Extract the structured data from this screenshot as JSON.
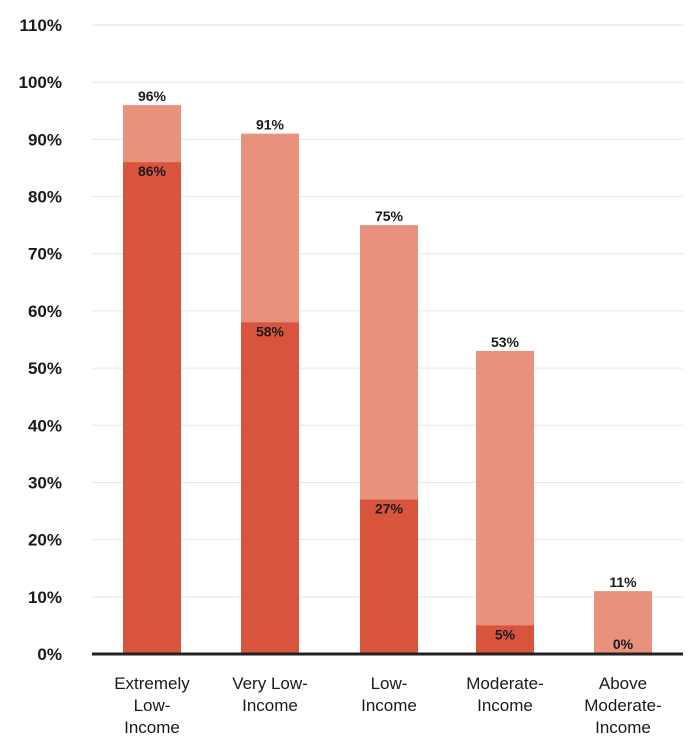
{
  "chart_data": {
    "type": "bar",
    "categories": [
      [
        "Extremely",
        "Low-",
        "Income"
      ],
      [
        "Very Low-",
        "Income"
      ],
      [
        "Low-",
        "Income"
      ],
      [
        "Moderate-",
        "Income"
      ],
      [
        "Above",
        "Moderate-",
        "Income"
      ]
    ],
    "series": [
      {
        "values": [
          96,
          91,
          75,
          53,
          11
        ],
        "labels": [
          "96%",
          "91%",
          "75%",
          "53%",
          "11%"
        ],
        "color": "#e8927e"
      },
      {
        "values": [
          86,
          58,
          27,
          5,
          0
        ],
        "labels": [
          "86%",
          "58%",
          "27%",
          "5%",
          "0%"
        ],
        "color": "#d9543d"
      }
    ],
    "y_ticks": [
      "0%",
      "10%",
      "20%",
      "30%",
      "40%",
      "50%",
      "60%",
      "70%",
      "80%",
      "90%",
      "100%",
      "110%"
    ],
    "ylim": [
      0,
      110
    ],
    "overlay": true,
    "grid": true,
    "title": "",
    "xlabel": "",
    "ylabel": ""
  }
}
